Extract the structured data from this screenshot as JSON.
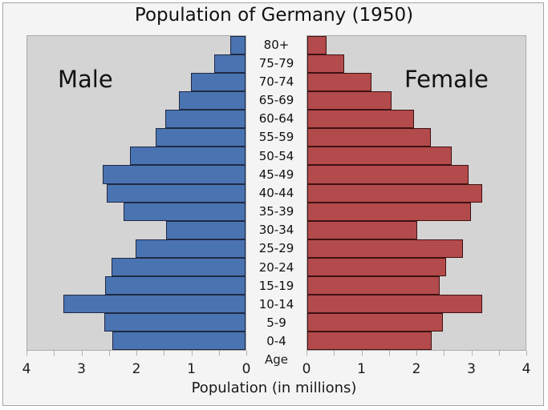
{
  "header": {
    "title": "Population of Germany (1950)"
  },
  "chart_data": {
    "type": "bar",
    "subtype": "population_pyramid",
    "title": "Population of Germany (1950)",
    "xlabel": "Population (in millions)",
    "center_axis_title": "Age",
    "units": "millions",
    "age_groups_top_to_bottom": [
      "80+",
      "75-79",
      "70-74",
      "65-69",
      "60-64",
      "55-59",
      "50-54",
      "45-49",
      "40-44",
      "35-39",
      "30-34",
      "25-29",
      "20-24",
      "15-19",
      "10-14",
      "5-9",
      "0-4"
    ],
    "series": [
      {
        "name": "Male",
        "side": "left",
        "color": "#4a73b2",
        "edge_color": "#1f2a44",
        "values_top_to_bottom": [
          0.28,
          0.58,
          1.0,
          1.22,
          1.47,
          1.65,
          2.12,
          2.62,
          2.54,
          2.24,
          1.45,
          2.02,
          2.46,
          2.58,
          3.34,
          2.59,
          2.44
        ]
      },
      {
        "name": "Female",
        "side": "right",
        "color": "#b34a4b",
        "edge_color": "#3f1212",
        "values_top_to_bottom": [
          0.35,
          0.67,
          1.17,
          1.55,
          1.95,
          2.27,
          2.65,
          2.95,
          3.2,
          3.0,
          2.02,
          2.85,
          2.55,
          2.42,
          3.2,
          2.48,
          2.28
        ]
      }
    ],
    "xlim": [
      0,
      4
    ],
    "x_ticks_left_panel": [
      "4",
      "3",
      "2",
      "1",
      "0"
    ],
    "x_ticks_right_panel": [
      "0",
      "1",
      "2",
      "3",
      "4"
    ],
    "minor_tick_step_millions": 0.5,
    "legend_position": "none",
    "grid": false
  },
  "labels": {
    "male_annotation": "Male",
    "female_annotation": "Female"
  },
  "colors": {
    "figure_background": "#f4f4f4",
    "panel_background": "#d4d4d4",
    "panel_border": "#ababab",
    "outer_border": "#a6a6a6",
    "male_bar": "#4a73b2",
    "male_bar_edge": "#1f2a44",
    "female_bar": "#b34a4b",
    "female_bar_edge": "#3f1212",
    "tick_mark": "#b0b0b0",
    "text": "#1a1a1a"
  }
}
